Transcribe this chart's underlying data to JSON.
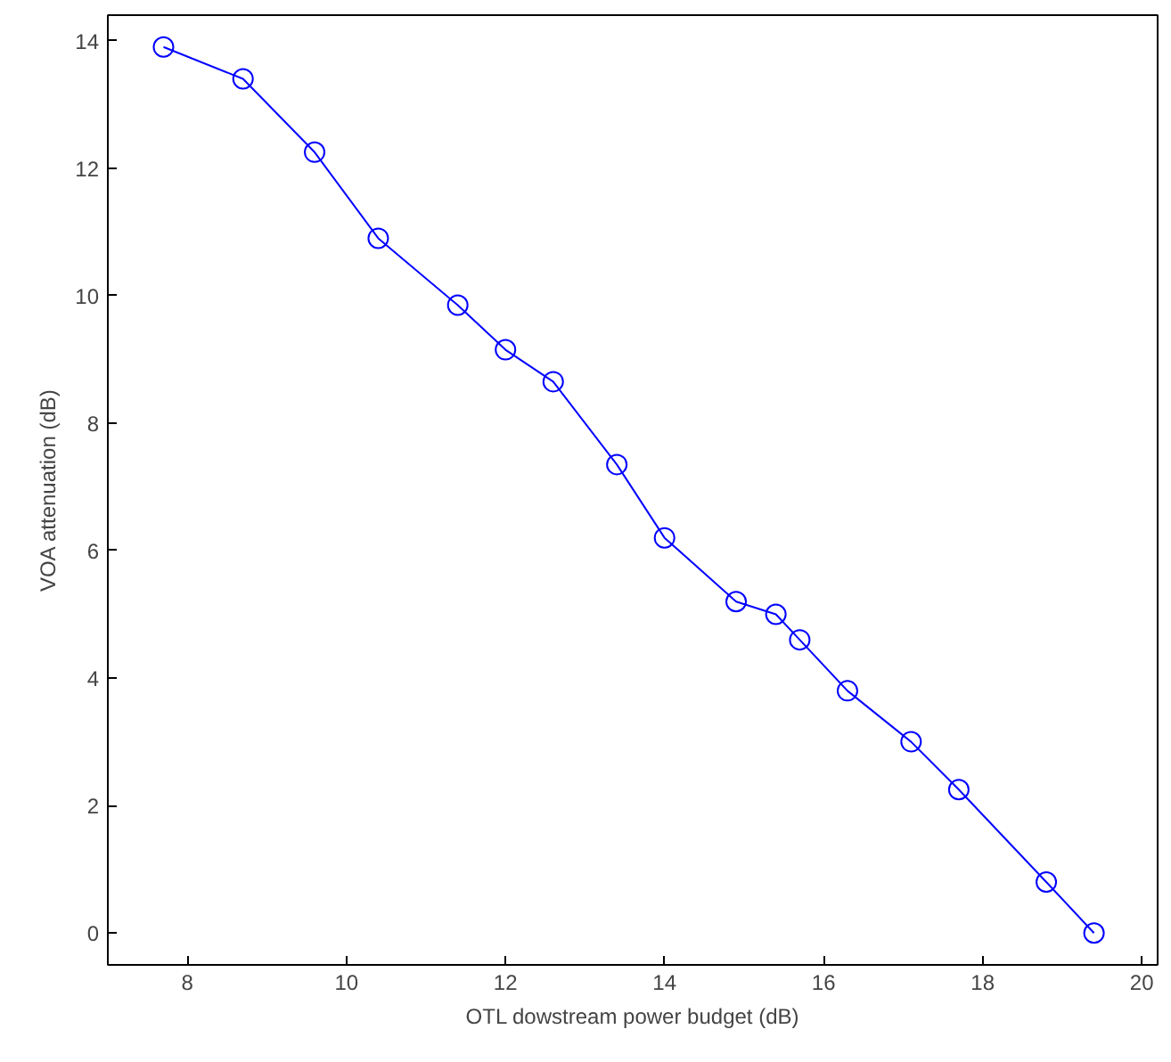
{
  "chart_data": {
    "type": "line",
    "xlabel": "OTL dowstream power budget (dB)",
    "ylabel": "VOA attenuation (dB)",
    "x": [
      7.7,
      8.7,
      9.6,
      10.4,
      11.4,
      12.0,
      12.6,
      13.4,
      14.0,
      14.9,
      15.4,
      15.7,
      16.3,
      17.1,
      17.7,
      18.8,
      19.4
    ],
    "series": [
      {
        "color": "#0000ff",
        "values": [
          13.9,
          13.4,
          12.25,
          10.9,
          9.85,
          9.15,
          8.65,
          7.35,
          6.2,
          5.2,
          5.0,
          4.6,
          3.8,
          3.0,
          2.25,
          0.8,
          0.0
        ]
      }
    ],
    "xlim": [
      7,
      20.2
    ],
    "ylim": [
      -0.5,
      14.4
    ],
    "xticks": [
      8,
      10,
      12,
      14,
      16,
      18,
      20
    ],
    "yticks": [
      0,
      2,
      4,
      6,
      8,
      10,
      12,
      14
    ],
    "grid": false,
    "marker": "circle",
    "line_style": "solid"
  }
}
